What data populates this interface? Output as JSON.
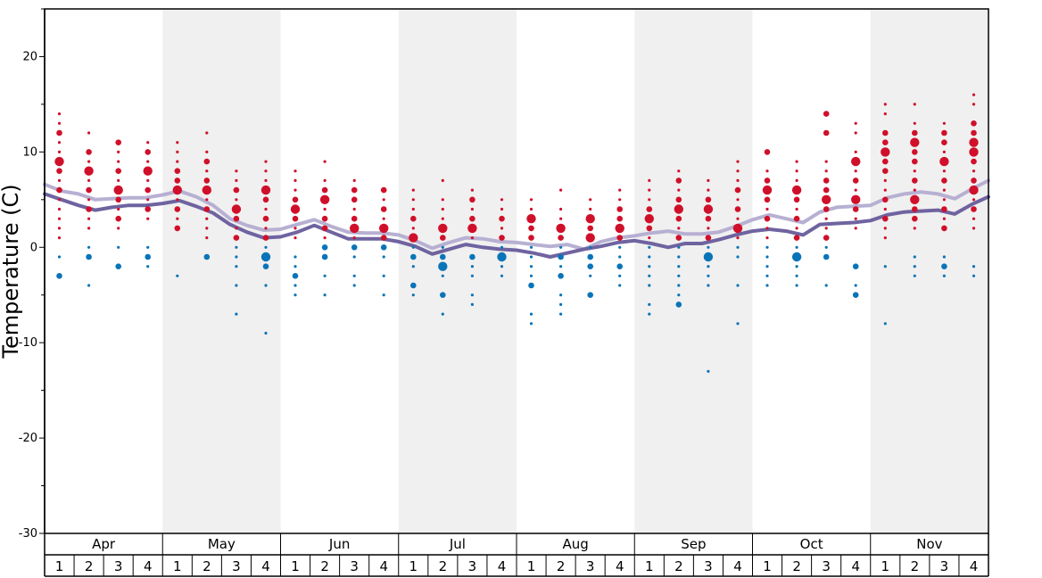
{
  "chart_data": {
    "type": "scatter",
    "ylabel": "Temperature (C)",
    "ylim": [
      -30,
      25
    ],
    "yticks": [
      20,
      10,
      0,
      -10,
      -20,
      -30
    ],
    "months": [
      "Apr",
      "May",
      "Jun",
      "Jul",
      "Aug",
      "Sep",
      "Oct",
      "Nov"
    ],
    "weeks": [
      "1",
      "2",
      "3",
      "4"
    ],
    "shaded_months": [
      "May",
      "Jul",
      "Sep",
      "Nov"
    ],
    "colors": {
      "warm_dot": "#d0102a",
      "cold_dot": "#0a74b8",
      "upper_line": "#b7b0d2",
      "lower_line": "#6f63a0",
      "band": "#f0f0f0",
      "axis": "#000000"
    },
    "series": [
      {
        "role": "upper-line",
        "values": [
          6.6,
          5.9,
          5.6,
          5.0,
          5.1,
          5.2,
          5.2,
          5.5,
          5.9,
          5.3,
          4.4,
          3.0,
          2.3,
          1.8,
          1.9,
          2.4,
          2.9,
          2.2,
          1.6,
          1.5,
          1.5,
          1.3,
          0.7,
          -0.1,
          0.5,
          1.0,
          0.9,
          0.6,
          0.5,
          0.3,
          0.1,
          0.3,
          -0.2,
          0.6,
          1.0,
          1.2,
          1.5,
          1.7,
          1.4,
          1.4,
          1.6,
          2.2,
          2.9,
          3.4,
          3.0,
          2.6,
          3.7,
          4.2,
          4.3,
          4.4,
          5.2,
          5.6,
          5.8,
          5.6,
          5.1,
          6.1,
          7.0
        ]
      },
      {
        "role": "lower-line",
        "values": [
          5.6,
          5.0,
          4.4,
          3.9,
          4.2,
          4.4,
          4.4,
          4.6,
          4.9,
          4.3,
          3.6,
          2.4,
          1.6,
          1.0,
          1.1,
          1.6,
          2.3,
          1.6,
          0.9,
          0.9,
          0.9,
          0.6,
          0.1,
          -0.7,
          -0.2,
          0.3,
          0.0,
          -0.2,
          -0.3,
          -0.6,
          -1.0,
          -0.6,
          -0.2,
          0.1,
          0.5,
          0.7,
          0.4,
          0.0,
          0.4,
          0.4,
          0.8,
          1.3,
          1.7,
          1.9,
          1.7,
          1.3,
          2.4,
          2.5,
          2.6,
          2.8,
          3.4,
          3.7,
          3.8,
          3.9,
          3.5,
          4.5,
          5.3
        ]
      }
    ],
    "dots": [
      {
        "week": 1,
        "values": [
          14,
          13,
          12,
          11,
          10,
          9,
          8,
          7,
          6,
          5,
          4,
          3,
          2,
          1,
          -1,
          -3
        ],
        "sizes": [
          1,
          1,
          2,
          1,
          1,
          3,
          2,
          1,
          2,
          1,
          1,
          1,
          1,
          1,
          1,
          2
        ]
      },
      {
        "week": 2,
        "values": [
          12,
          10,
          9,
          8,
          7,
          6,
          5,
          4,
          3,
          2,
          0,
          -1,
          -4
        ],
        "sizes": [
          1,
          2,
          1,
          3,
          1,
          2,
          1,
          2,
          1,
          1,
          1,
          2,
          1
        ]
      },
      {
        "week": 3,
        "values": [
          11,
          10,
          9,
          8,
          7,
          6,
          5,
          4,
          3,
          2,
          0,
          -2
        ],
        "sizes": [
          2,
          1,
          1,
          2,
          1,
          3,
          2,
          1,
          2,
          1,
          1,
          2
        ]
      },
      {
        "week": 4,
        "values": [
          11,
          10,
          9,
          8,
          7,
          6,
          5,
          4,
          3,
          0,
          -1,
          -2
        ],
        "sizes": [
          1,
          2,
          1,
          3,
          1,
          2,
          1,
          2,
          1,
          1,
          2,
          1
        ]
      },
      {
        "week": 5,
        "values": [
          11,
          10,
          9,
          8,
          7,
          6,
          5,
          4,
          3,
          2,
          -3
        ],
        "sizes": [
          1,
          1,
          1,
          2,
          2,
          3,
          1,
          2,
          1,
          2,
          1
        ]
      },
      {
        "week": 6,
        "values": [
          12,
          10,
          9,
          8,
          7,
          6,
          5,
          4,
          3,
          2,
          1,
          -1
        ],
        "sizes": [
          1,
          1,
          2,
          1,
          2,
          3,
          1,
          2,
          1,
          1,
          1,
          2
        ]
      },
      {
        "week": 7,
        "values": [
          8,
          7,
          6,
          5,
          4,
          3,
          2,
          1,
          0,
          -1,
          -2,
          -4,
          -7
        ],
        "sizes": [
          1,
          1,
          2,
          1,
          3,
          2,
          1,
          2,
          1,
          1,
          1,
          1,
          1
        ]
      },
      {
        "week": 8,
        "values": [
          9,
          8,
          7,
          6,
          5,
          4,
          3,
          2,
          1,
          0,
          -1,
          -2,
          -4,
          -9
        ],
        "sizes": [
          1,
          1,
          1,
          3,
          2,
          1,
          2,
          1,
          2,
          1,
          3,
          2,
          1,
          1
        ]
      },
      {
        "week": 9,
        "values": [
          8,
          7,
          6,
          5,
          4,
          3,
          2,
          1,
          -1,
          -2,
          -3,
          -4,
          -5
        ],
        "sizes": [
          1,
          1,
          1,
          2,
          3,
          2,
          1,
          1,
          1,
          1,
          2,
          1,
          1
        ]
      },
      {
        "week": 10,
        "values": [
          9,
          7,
          6,
          5,
          4,
          3,
          2,
          1,
          0,
          -1,
          -3,
          -5
        ],
        "sizes": [
          1,
          1,
          2,
          3,
          1,
          2,
          2,
          1,
          2,
          2,
          1,
          1
        ]
      },
      {
        "week": 11,
        "values": [
          7,
          6,
          5,
          4,
          3,
          2,
          1,
          0,
          -1,
          -3,
          -4
        ],
        "sizes": [
          1,
          2,
          2,
          1,
          2,
          3,
          1,
          2,
          1,
          1,
          1
        ]
      },
      {
        "week": 12,
        "values": [
          6,
          5,
          4,
          3,
          2,
          1,
          0,
          -1,
          -3,
          -5
        ],
        "sizes": [
          2,
          1,
          2,
          1,
          3,
          2,
          2,
          1,
          1,
          1
        ]
      },
      {
        "week": 13,
        "values": [
          6,
          5,
          4,
          3,
          2,
          1,
          0,
          -1,
          -2,
          -4,
          -5
        ],
        "sizes": [
          1,
          1,
          1,
          2,
          1,
          3,
          1,
          2,
          1,
          2,
          1
        ]
      },
      {
        "week": 14,
        "values": [
          7,
          5,
          4,
          3,
          2,
          1,
          0,
          -1,
          -2,
          -3,
          -5,
          -7
        ],
        "sizes": [
          1,
          1,
          1,
          1,
          3,
          2,
          1,
          2,
          3,
          1,
          2,
          1
        ]
      },
      {
        "week": 15,
        "values": [
          6,
          5,
          4,
          3,
          2,
          1,
          -1,
          -2,
          -3,
          -5,
          -6
        ],
        "sizes": [
          1,
          2,
          1,
          2,
          3,
          1,
          2,
          1,
          1,
          1,
          1
        ]
      },
      {
        "week": 16,
        "values": [
          5,
          4,
          3,
          2,
          1,
          0,
          -1,
          -2,
          -3
        ],
        "sizes": [
          1,
          1,
          2,
          1,
          2,
          1,
          3,
          1,
          1
        ]
      },
      {
        "week": 17,
        "values": [
          5,
          4,
          3,
          2,
          1,
          0,
          -1,
          -2,
          -3,
          -4,
          -7,
          -8
        ],
        "sizes": [
          1,
          1,
          3,
          2,
          2,
          1,
          1,
          1,
          1,
          2,
          1,
          1
        ]
      },
      {
        "week": 18,
        "values": [
          6,
          4,
          3,
          2,
          1,
          0,
          -1,
          -2,
          -3,
          -5,
          -6,
          -7
        ],
        "sizes": [
          1,
          1,
          1,
          3,
          2,
          1,
          2,
          1,
          2,
          1,
          1,
          1
        ]
      },
      {
        "week": 19,
        "values": [
          5,
          4,
          3,
          2,
          1,
          0,
          -1,
          -2,
          -3,
          -5
        ],
        "sizes": [
          1,
          1,
          3,
          2,
          3,
          1,
          2,
          2,
          1,
          2
        ]
      },
      {
        "week": 20,
        "values": [
          6,
          5,
          4,
          3,
          2,
          1,
          0,
          -1,
          -2,
          -3,
          -4
        ],
        "sizes": [
          1,
          1,
          2,
          2,
          3,
          2,
          1,
          1,
          2,
          1,
          1
        ]
      },
      {
        "week": 21,
        "values": [
          7,
          6,
          5,
          4,
          3,
          2,
          1,
          0,
          -1,
          -2,
          -3,
          -4,
          -6,
          -7
        ],
        "sizes": [
          1,
          1,
          1,
          2,
          3,
          2,
          1,
          1,
          1,
          1,
          1,
          1,
          1,
          1
        ]
      },
      {
        "week": 22,
        "values": [
          8,
          7,
          6,
          5,
          4,
          3,
          2,
          1,
          0,
          -1,
          -2,
          -3,
          -4,
          -5,
          -6
        ],
        "sizes": [
          1,
          2,
          1,
          2,
          3,
          2,
          1,
          2,
          1,
          1,
          1,
          1,
          1,
          1,
          2
        ]
      },
      {
        "week": 23,
        "values": [
          7,
          6,
          5,
          4,
          3,
          2,
          1,
          0,
          -1,
          -2,
          -3,
          -4,
          -13
        ],
        "sizes": [
          1,
          1,
          2,
          3,
          2,
          1,
          2,
          1,
          3,
          1,
          1,
          1,
          1
        ]
      },
      {
        "week": 24,
        "values": [
          9,
          8,
          7,
          6,
          5,
          4,
          3,
          2,
          1,
          0,
          -1,
          -4,
          -8
        ],
        "sizes": [
          1,
          1,
          1,
          2,
          1,
          2,
          1,
          3,
          1,
          1,
          1,
          1,
          1
        ]
      },
      {
        "week": 25,
        "values": [
          10,
          8,
          7,
          6,
          5,
          4,
          3,
          2,
          1,
          0,
          -1,
          -2,
          -3,
          -4
        ],
        "sizes": [
          2,
          1,
          2,
          3,
          2,
          1,
          2,
          1,
          1,
          1,
          1,
          1,
          1,
          1
        ]
      },
      {
        "week": 26,
        "values": [
          9,
          8,
          7,
          6,
          5,
          4,
          3,
          2,
          1,
          0,
          -1,
          -2,
          -3,
          -4
        ],
        "sizes": [
          1,
          1,
          1,
          3,
          2,
          1,
          2,
          1,
          2,
          1,
          3,
          1,
          1,
          1
        ]
      },
      {
        "week": 27,
        "values": [
          14,
          12,
          9,
          8,
          7,
          6,
          5,
          4,
          3,
          2,
          1,
          0,
          -1,
          -4
        ],
        "sizes": [
          2,
          2,
          1,
          1,
          2,
          2,
          3,
          2,
          1,
          1,
          2,
          1,
          2,
          1
        ]
      },
      {
        "week": 28,
        "values": [
          13,
          12,
          10,
          9,
          8,
          7,
          6,
          5,
          4,
          3,
          2,
          -2,
          -4,
          -5
        ],
        "sizes": [
          1,
          1,
          1,
          3,
          1,
          2,
          1,
          3,
          2,
          1,
          1,
          2,
          1,
          2
        ]
      },
      {
        "week": 29,
        "values": [
          15,
          14,
          12,
          11,
          10,
          9,
          8,
          7,
          6,
          5,
          4,
          3,
          2,
          1,
          -2,
          -8
        ],
        "sizes": [
          1,
          1,
          2,
          2,
          3,
          2,
          2,
          1,
          1,
          2,
          1,
          2,
          1,
          1,
          1,
          1
        ]
      },
      {
        "week": 30,
        "values": [
          15,
          13,
          12,
          11,
          10,
          9,
          8,
          7,
          6,
          5,
          4,
          3,
          2,
          -1,
          -2,
          -3
        ],
        "sizes": [
          1,
          1,
          2,
          3,
          2,
          2,
          1,
          2,
          1,
          3,
          2,
          2,
          1,
          1,
          1,
          1
        ]
      },
      {
        "week": 31,
        "values": [
          13,
          12,
          11,
          10,
          9,
          8,
          7,
          6,
          5,
          4,
          3,
          2,
          -1,
          -2,
          -3
        ],
        "sizes": [
          1,
          2,
          2,
          1,
          3,
          1,
          2,
          1,
          1,
          2,
          1,
          2,
          1,
          2,
          1
        ]
      },
      {
        "week": 32,
        "values": [
          16,
          15,
          13,
          12,
          11,
          10,
          9,
          8,
          7,
          6,
          5,
          4,
          3,
          2,
          -2,
          -3
        ],
        "sizes": [
          1,
          1,
          2,
          2,
          3,
          3,
          2,
          1,
          2,
          3,
          1,
          2,
          1,
          1,
          1,
          1
        ]
      }
    ]
  }
}
